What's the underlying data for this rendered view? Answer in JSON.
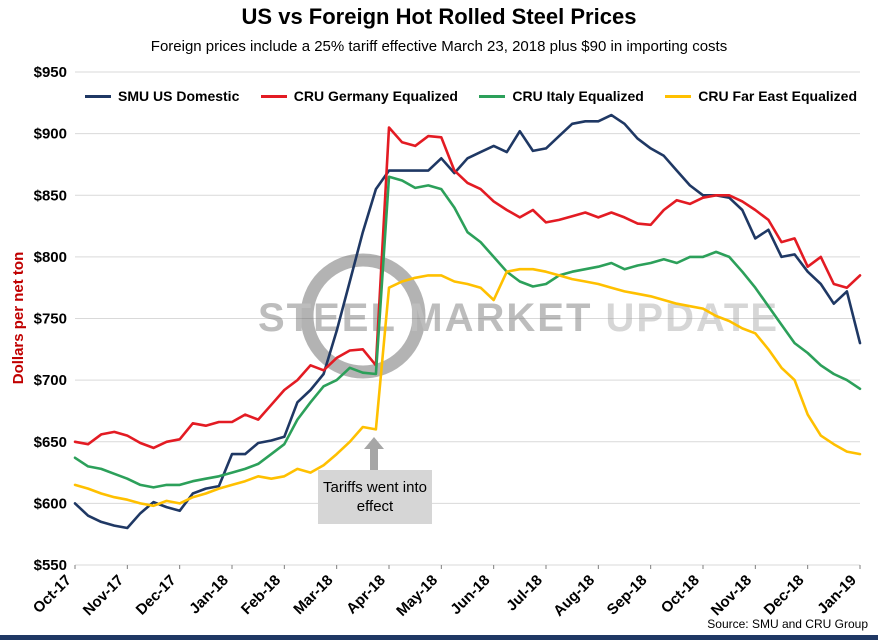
{
  "chart_data": {
    "type": "line",
    "title": "US vs Foreign Hot Rolled Steel Prices",
    "subtitle": "Foreign prices include a 25% tariff effective March 23, 2018 plus $90 in importing costs",
    "ylabel": "Dollars per net ton",
    "ylim": [
      550,
      950
    ],
    "ytick_step": 50,
    "ytick_prefix": "$",
    "grid": true,
    "legend_position": "top-inside",
    "x_tick_labels": [
      "Oct-17",
      "Nov-17",
      "Dec-17",
      "Jan-18",
      "Feb-18",
      "Mar-18",
      "Apr-18",
      "May-18",
      "Jun-18",
      "Jul-18",
      "Aug-18",
      "Sep-18",
      "Oct-18",
      "Nov-18",
      "Dec-18",
      "Jan-19"
    ],
    "series": [
      {
        "name": "SMU US Domestic",
        "color": "#1f3864",
        "values": [
          600,
          590,
          585,
          582,
          580,
          592,
          601,
          597,
          594,
          608,
          612,
          614,
          640,
          640,
          649,
          651,
          654,
          682,
          692,
          705,
          740,
          780,
          820,
          855,
          870,
          870,
          870,
          870,
          880,
          868,
          880,
          885,
          890,
          885,
          902,
          886,
          888,
          898,
          908,
          910,
          910,
          915,
          908,
          896,
          888,
          882,
          870,
          858,
          850,
          850,
          848,
          838,
          815,
          822,
          800,
          802,
          788,
          778,
          762,
          772,
          730
        ]
      },
      {
        "name": "CRU Germany Equalized",
        "color": "#e31b23",
        "values": [
          650,
          648,
          656,
          658,
          655,
          649,
          645,
          650,
          652,
          665,
          663,
          666,
          666,
          672,
          668,
          680,
          692,
          700,
          712,
          708,
          718,
          724,
          725,
          712,
          905,
          893,
          890,
          898,
          897,
          870,
          860,
          855,
          845,
          838,
          832,
          838,
          828,
          830,
          833,
          836,
          832,
          836,
          832,
          827,
          826,
          838,
          846,
          843,
          848,
          850,
          850,
          845,
          838,
          830,
          812,
          815,
          792,
          800,
          778,
          775,
          785
        ]
      },
      {
        "name": "CRU Italy Equalized",
        "color": "#2ca05a",
        "values": [
          637,
          630,
          628,
          624,
          620,
          615,
          613,
          615,
          615,
          618,
          620,
          622,
          625,
          628,
          632,
          640,
          648,
          668,
          682,
          695,
          700,
          710,
          706,
          705,
          865,
          862,
          856,
          858,
          855,
          840,
          820,
          812,
          800,
          788,
          780,
          776,
          778,
          785,
          788,
          790,
          792,
          795,
          790,
          793,
          795,
          798,
          795,
          800,
          800,
          804,
          800,
          788,
          775,
          760,
          745,
          730,
          722,
          712,
          705,
          700,
          693
        ]
      },
      {
        "name": "CRU Far East Equalized",
        "color": "#ffc000",
        "values": [
          615,
          612,
          608,
          605,
          603,
          600,
          598,
          602,
          600,
          605,
          608,
          612,
          615,
          618,
          622,
          620,
          622,
          628,
          625,
          631,
          640,
          650,
          662,
          660,
          775,
          780,
          783,
          785,
          785,
          780,
          778,
          775,
          765,
          788,
          790,
          790,
          788,
          785,
          782,
          780,
          778,
          775,
          772,
          770,
          768,
          765,
          762,
          760,
          758,
          752,
          748,
          742,
          738,
          725,
          710,
          700,
          672,
          655,
          648,
          642,
          640
        ]
      }
    ],
    "annotation": {
      "text": "Tariffs went into effect"
    },
    "watermark": {
      "words": [
        "STEEL",
        "MARKET",
        "UPDATE"
      ]
    },
    "source": "Source: SMU and CRU Group",
    "colors": {
      "axis_label": "#c00000",
      "grid": "#d9d9d9",
      "annotation_bg": "#d6d6d6",
      "accent_bar": "#1f3864",
      "watermark": "#6f6f6f"
    }
  }
}
